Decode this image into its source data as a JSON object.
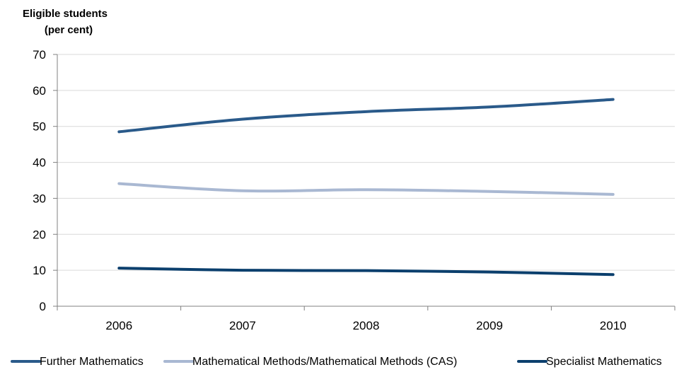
{
  "chart_data": {
    "type": "line",
    "title": "",
    "ylabel_line1": "Eligible students",
    "ylabel_line2": "(per cent)",
    "xlabel": "",
    "categories": [
      "2006",
      "2007",
      "2008",
      "2009",
      "2010"
    ],
    "ylim": [
      0,
      70
    ],
    "yticks": [
      "0",
      "10",
      "20",
      "30",
      "40",
      "50",
      "60",
      "70"
    ],
    "grid": true,
    "legend_position": "bottom",
    "series": [
      {
        "name": "Further Mathematics",
        "values": [
          48.5,
          52.0,
          54.1,
          55.4,
          57.5
        ],
        "color": "#2a5a8a"
      },
      {
        "name": "Mathematical Methods/Mathematical Methods (CAS)",
        "values": [
          34.1,
          32.1,
          32.4,
          31.9,
          31.1
        ],
        "color": "#a9b8d2"
      },
      {
        "name": "Specialist Mathematics",
        "values": [
          10.6,
          10.0,
          9.9,
          9.5,
          8.8
        ],
        "color": "#0b3f6d"
      }
    ]
  }
}
